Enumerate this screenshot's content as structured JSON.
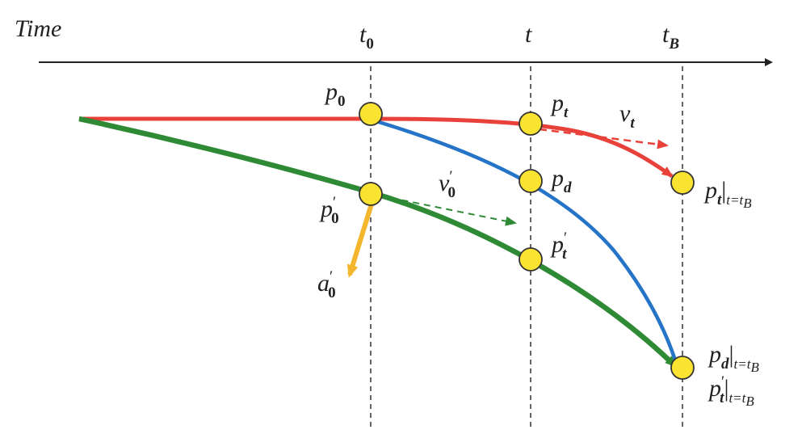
{
  "axis": {
    "label": "Time",
    "ticks": [
      {
        "symbol": "t",
        "sub": "0"
      },
      {
        "symbol": "t"
      },
      {
        "symbol": "t",
        "sub": "B"
      }
    ]
  },
  "labels": {
    "p0": {
      "symbol": "p",
      "sub": "0"
    },
    "pt": {
      "symbol": "p",
      "sub": "t"
    },
    "vt": {
      "symbol": "v",
      "sub": "t"
    },
    "pd": {
      "symbol": "p",
      "sub": "d"
    },
    "v0p": {
      "symbol": "v",
      "sup": "′",
      "sub": "0"
    },
    "p0p": {
      "symbol": "p",
      "sup": "′",
      "sub": "0"
    },
    "ptp": {
      "symbol": "p",
      "sup": "′",
      "sub": "t"
    },
    "a0p": {
      "symbol": "a",
      "sup": "′",
      "sub": "0"
    },
    "pt_tB": {
      "symbol": "p",
      "sub": "t",
      "bar": "|",
      "cond": "t=t",
      "cond_sub": "B"
    },
    "pd_tB": {
      "symbol": "p",
      "sub": "d",
      "bar": "|",
      "cond": "t=t",
      "cond_sub": "B"
    },
    "ptp_tB": {
      "symbol": "p",
      "sup": "′",
      "sub": "t",
      "bar": "|",
      "cond": "t=t",
      "cond_sub": "B"
    }
  }
}
